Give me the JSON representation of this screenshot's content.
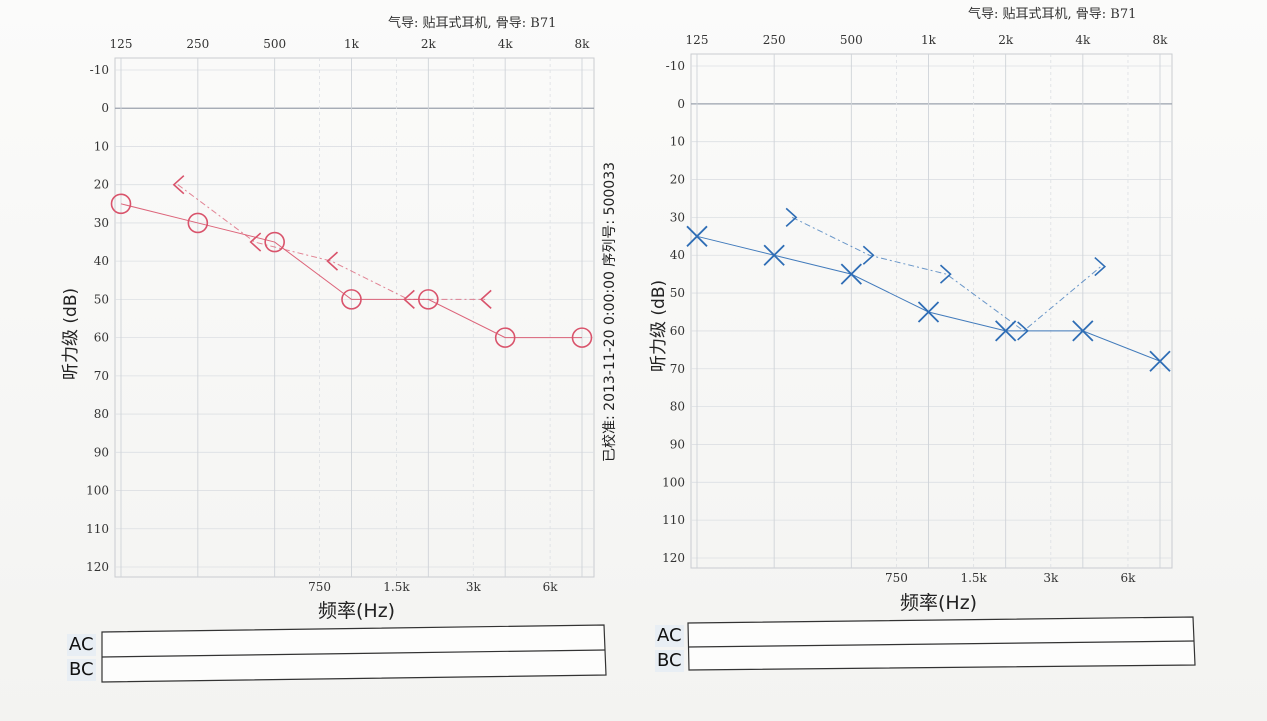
{
  "calibration_text": "已校准: 2013-11-20 0:00:00 序列号: 500033",
  "legend_box": {
    "ac_label": "AC",
    "bc_label": "BC"
  },
  "chart_data": [
    {
      "type": "line",
      "title": "气导: 贴耳式耳机, 骨导: B71",
      "xlabel": "频率(Hz)",
      "ylabel": "听力级 (dB)",
      "x_scale": "log",
      "x_ticks_top": [
        "125",
        "250",
        "500",
        "1k",
        "2k",
        "4k",
        "8k"
      ],
      "x_ticks_bottom": [
        "750",
        "1.5k",
        "3k",
        "6k"
      ],
      "y_ticks": [
        -10,
        0,
        10,
        20,
        30,
        40,
        50,
        60,
        70,
        80,
        90,
        100,
        110,
        120
      ],
      "ylim": [
        -10,
        120
      ],
      "y_inverted": true,
      "reference_line_y": 0,
      "color": "#d9536b",
      "series": [
        {
          "marker": "circle",
          "x": [
            125,
            250,
            500,
            1000,
            2000,
            4000,
            8000
          ],
          "y": [
            25,
            30,
            35,
            50,
            50,
            60,
            60
          ]
        },
        {
          "marker": "bracket-left",
          "x": [
            250,
            500,
            1000,
            2000,
            4000
          ],
          "y": [
            20,
            35,
            40,
            50,
            50
          ]
        }
      ]
    },
    {
      "type": "line",
      "title": "气导: 贴耳式耳机, 骨导: B71",
      "xlabel": "频率(Hz)",
      "ylabel": "听力级 (dB)",
      "x_scale": "log",
      "x_ticks_top": [
        "125",
        "250",
        "500",
        "1k",
        "2k",
        "4k",
        "8k"
      ],
      "x_ticks_bottom": [
        "750",
        "1.5k",
        "3k",
        "6k"
      ],
      "y_ticks": [
        -10,
        0,
        10,
        20,
        30,
        40,
        50,
        60,
        70,
        80,
        90,
        100,
        110,
        120
      ],
      "ylim": [
        -10,
        120
      ],
      "y_inverted": true,
      "reference_line_y": 0,
      "color": "#2e6db5",
      "series": [
        {
          "marker": "cross",
          "x": [
            125,
            250,
            500,
            1000,
            2000,
            4000,
            8000
          ],
          "y": [
            35,
            40,
            45,
            55,
            60,
            60,
            68
          ]
        },
        {
          "marker": "bracket-right",
          "x": [
            250,
            500,
            1000,
            2000,
            4000
          ],
          "y": [
            30,
            40,
            45,
            60,
            43
          ]
        }
      ]
    }
  ]
}
